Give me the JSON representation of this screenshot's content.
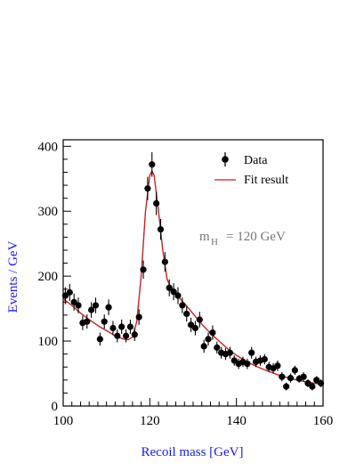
{
  "chart_data": {
    "type": "scatter",
    "xlabel": "Recoil mass  [GeV]",
    "ylabel": "Events / GeV",
    "xlim": [
      100,
      160
    ],
    "ylim": [
      0,
      410
    ],
    "x_ticks": [
      100,
      120,
      140,
      160
    ],
    "y_ticks": [
      0,
      100,
      200,
      300,
      400
    ],
    "legend": {
      "placement": "top-right",
      "entries": [
        "Data",
        "Fit result"
      ]
    },
    "annotation": {
      "main": "m",
      "subscript": "H",
      "rest": "=  120  GeV"
    },
    "colors": {
      "data": "#000000",
      "fit": "#cc2222",
      "axis_title": "#1a1aff",
      "annotation": "#777777"
    },
    "series": [
      {
        "name": "Data",
        "kind": "points_with_errors",
        "x": [
          100.5,
          101.5,
          102.5,
          103.5,
          104.5,
          105.5,
          106.5,
          107.5,
          108.5,
          109.5,
          110.5,
          111.5,
          112.5,
          113.5,
          114.5,
          115.5,
          116.5,
          117.5,
          118.5,
          119.5,
          120.5,
          121.5,
          122.5,
          123.5,
          124.5,
          125.5,
          126.5,
          127.5,
          128.5,
          129.5,
          130.5,
          131.5,
          132.5,
          133.5,
          134.5,
          135.5,
          136.5,
          137.5,
          138.5,
          139.5,
          140.5,
          141.5,
          142.5,
          143.5,
          144.5,
          145.5,
          146.5,
          147.5,
          148.5,
          149.5,
          150.5,
          151.5,
          152.5,
          153.5,
          154.5,
          155.5,
          156.5,
          157.5,
          158.5,
          159.5
        ],
        "y": [
          170,
          175,
          160,
          155,
          128,
          130,
          148,
          155,
          103,
          130,
          152,
          120,
          108,
          122,
          108,
          122,
          110,
          137,
          210,
          335,
          372,
          312,
          272,
          222,
          182,
          176,
          170,
          155,
          142,
          125,
          120,
          133,
          92,
          103,
          113,
          90,
          82,
          80,
          82,
          70,
          65,
          68,
          65,
          82,
          68,
          70,
          72,
          60,
          58,
          62,
          45,
          30,
          43,
          55,
          42,
          45,
          35,
          30,
          40,
          35
        ],
        "err": [
          13,
          13,
          13,
          12,
          11,
          11,
          12,
          12,
          10,
          11,
          12,
          11,
          10,
          11,
          10,
          11,
          10,
          12,
          14,
          18,
          19,
          18,
          16,
          15,
          13,
          13,
          13,
          12,
          12,
          11,
          11,
          12,
          10,
          10,
          11,
          9,
          9,
          9,
          9,
          8,
          8,
          8,
          8,
          9,
          8,
          8,
          8,
          8,
          8,
          8,
          7,
          6,
          7,
          7,
          6,
          7,
          6,
          6,
          6,
          6
        ]
      },
      {
        "name": "Fit result",
        "kind": "line",
        "x": [
          100,
          102,
          104,
          106,
          108,
          110,
          112,
          114,
          115,
          116,
          117,
          118,
          119,
          120,
          120.5,
          121,
          122,
          123,
          124,
          125,
          126,
          128,
          130,
          132,
          134,
          136,
          138,
          140,
          142,
          144,
          146,
          148,
          150,
          152,
          154,
          156,
          158,
          160
        ],
        "y": [
          165,
          155,
          143,
          133,
          124,
          116,
          108,
          103,
          102,
          106,
          130,
          200,
          300,
          355,
          362,
          355,
          300,
          240,
          195,
          180,
          172,
          158,
          142,
          126,
          112,
          100,
          88,
          78,
          70,
          63,
          57,
          52,
          47,
          43,
          40,
          37,
          35,
          34
        ]
      }
    ]
  }
}
